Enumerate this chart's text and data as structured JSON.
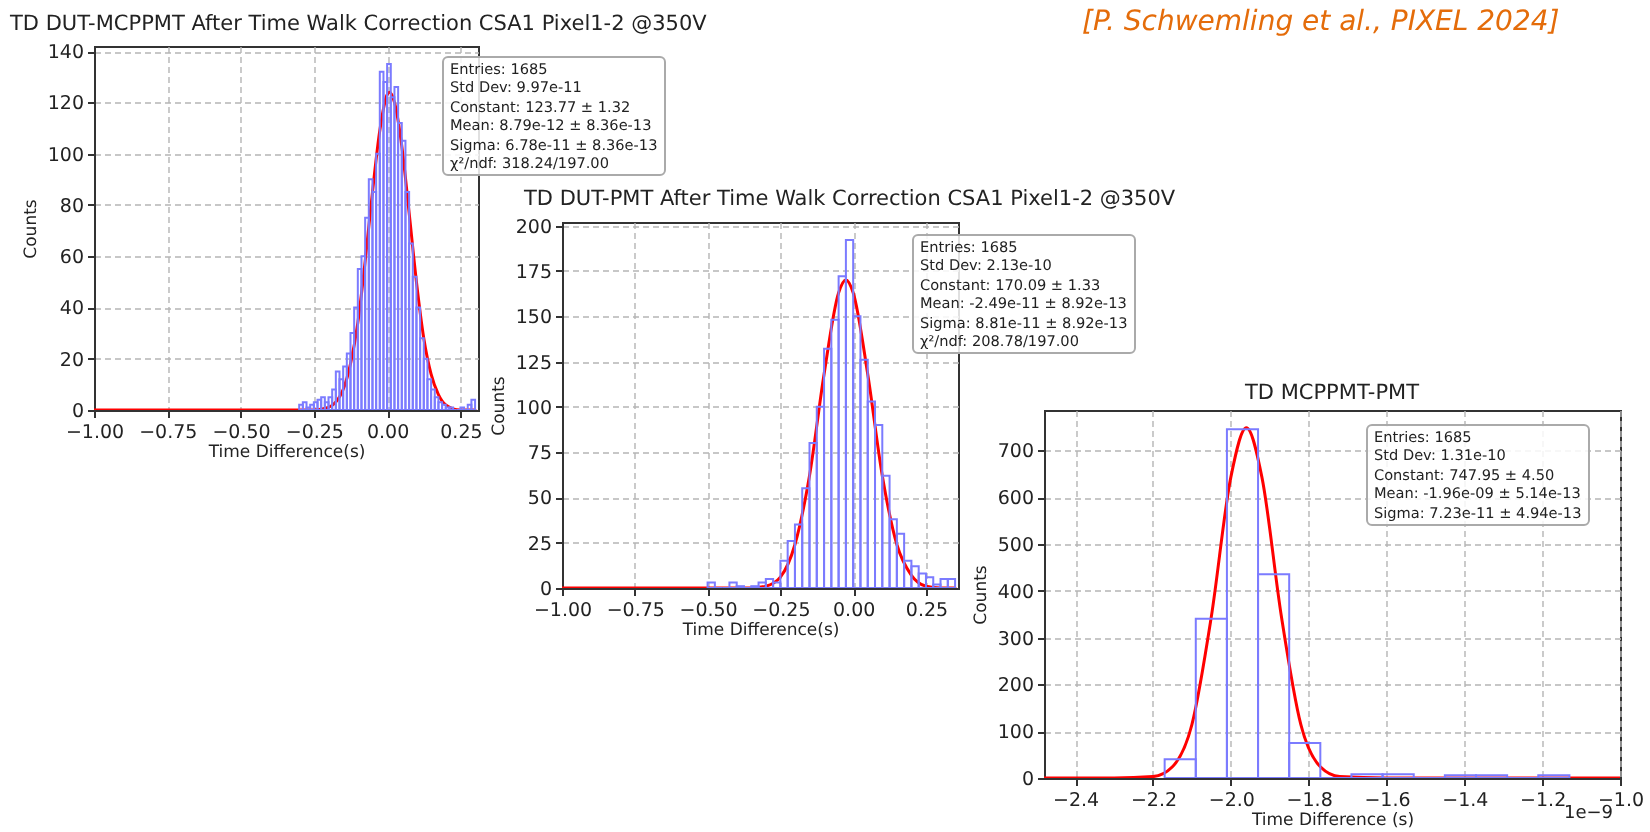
{
  "chart_data": [
    {
      "type": "histogram",
      "title": "TD DUT-MCPPMT After Time Walk Correction CSA1 Pixel1-2 @350V",
      "xlabel": "Time Difference(s)",
      "ylabel": "Counts",
      "xlim": [
        -1,
        0.31
      ],
      "xticks": [
        {
          "value": -1,
          "label": "−1.00"
        },
        {
          "value": -0.75,
          "label": "−0.75"
        },
        {
          "value": -0.5,
          "label": "−0.50"
        },
        {
          "value": -0.25,
          "label": "−0.25"
        },
        {
          "value": 0,
          "label": "0.00"
        },
        {
          "value": 0.25,
          "label": "0.25"
        }
      ],
      "ylim": [
        0,
        142
      ],
      "yticks": [
        0,
        20,
        40,
        60,
        80,
        100,
        120,
        140
      ],
      "grid": true,
      "annotations": [
        "Entries: 1685",
        "Std Dev: 9.97e-11",
        "Constant: 123.77 ± 1.32",
        "Mean: 8.79e-12 ± 8.36e-13",
        "Sigma: 6.78e-11 ± 8.36e-13",
        "χ²/ndf: 318.24/197.00"
      ],
      "series": [
        {
          "color": "#7b7bff",
          "bins": [
            -0.3,
            -0.2875,
            -0.275,
            -0.2625,
            -0.25,
            -0.2375,
            -0.225,
            -0.2125,
            -0.2,
            -0.1875,
            -0.175,
            -0.1625,
            -0.15,
            -0.1375,
            -0.125,
            -0.1125,
            -0.1,
            -0.0875,
            -0.075,
            -0.0625,
            -0.05,
            -0.0375,
            -0.025,
            -0.0125,
            0,
            0.0125,
            0.025,
            0.0375,
            0.05,
            0.0625,
            0.075,
            0.0875,
            0.1,
            0.1125,
            0.125,
            0.1375,
            0.15,
            0.1625,
            0.175,
            0.1875,
            0.2,
            0.2125,
            0.225,
            0.2375,
            0.25,
            0.2625,
            0.275,
            0.2875,
            0.3
          ],
          "values": [
            2,
            3,
            1,
            2,
            3,
            4,
            5,
            3,
            5,
            8,
            15,
            12,
            17,
            22,
            30,
            40,
            55,
            60,
            75,
            90,
            85,
            100,
            132,
            128,
            135,
            122,
            126,
            112,
            105,
            85,
            65,
            52,
            40,
            28,
            20,
            12,
            8,
            5,
            3,
            2,
            1,
            1,
            0,
            0,
            1,
            0,
            2,
            4
          ]
        },
        {
          "type": "line",
          "color": "#ff0000",
          "x": [
            -1,
            -0.3,
            -0.25,
            -0.2,
            -0.15,
            -0.125,
            -0.1,
            -0.075,
            -0.05,
            -0.025,
            0,
            0.0088,
            0.025,
            0.05,
            0.075,
            0.1,
            0.125,
            0.15,
            0.175,
            0.2,
            0.25,
            0.3
          ],
          "values": [
            0,
            0,
            0,
            1,
            8,
            18,
            34,
            58,
            85,
            109,
            123,
            124,
            120,
            103,
            77,
            50,
            28,
            14,
            6,
            2,
            0,
            0
          ]
        }
      ]
    },
    {
      "type": "histogram",
      "title": "TD DUT-PMT After Time Walk Correction CSA1 Pixel1-2 @350V",
      "xlabel": "Time Difference(s)",
      "ylabel": "Counts",
      "xlim": [
        -1,
        0.36
      ],
      "xticks": [
        {
          "value": -1,
          "label": "−1.00"
        },
        {
          "value": -0.75,
          "label": "−0.75"
        },
        {
          "value": -0.5,
          "label": "−0.50"
        },
        {
          "value": -0.25,
          "label": "−0.25"
        },
        {
          "value": 0,
          "label": "0.00"
        },
        {
          "value": 0.25,
          "label": "0.25"
        }
      ],
      "ylim": [
        0,
        202
      ],
      "yticks": [
        0,
        25,
        50,
        75,
        100,
        125,
        150,
        175,
        200
      ],
      "grid": true,
      "annotations": [
        "Entries: 1685",
        "Std Dev: 2.13e-10",
        "Constant: 170.09 ± 1.33",
        "Mean: -2.49e-11 ± 8.92e-13",
        "Sigma: 8.81e-11 ± 8.92e-13",
        "χ²/ndf: 208.78/197.00"
      ],
      "series": [
        {
          "color": "#7b7bff",
          "bins": [
            -0.5,
            -0.475,
            -0.45,
            -0.425,
            -0.4,
            -0.375,
            -0.35,
            -0.325,
            -0.3,
            -0.275,
            -0.25,
            -0.225,
            -0.2,
            -0.175,
            -0.15,
            -0.125,
            -0.1,
            -0.075,
            -0.05,
            -0.025,
            0,
            0.025,
            0.05,
            0.075,
            0.1,
            0.125,
            0.15,
            0.175,
            0.2,
            0.225,
            0.25,
            0.275,
            0.3,
            0.325,
            0.35
          ],
          "values": [
            3,
            0,
            0,
            3,
            1,
            0,
            1,
            3,
            5,
            3,
            15,
            26,
            35,
            55,
            80,
            100,
            132,
            148,
            172,
            192,
            150,
            126,
            103,
            90,
            62,
            38,
            30,
            15,
            12,
            8,
            6,
            2,
            5,
            5
          ]
        },
        {
          "type": "line",
          "color": "#ff0000",
          "x": [
            -1,
            -0.5,
            -0.4,
            -0.35,
            -0.3,
            -0.25,
            -0.2,
            -0.15,
            -0.1,
            -0.05,
            -0.0249,
            0,
            0.05,
            0.1,
            0.15,
            0.2,
            0.25,
            0.3,
            0.35
          ],
          "values": [
            0,
            0,
            0,
            0,
            1,
            6,
            24,
            62,
            118,
            163,
            170,
            163,
            118,
            62,
            24,
            7,
            1,
            0,
            0
          ]
        }
      ]
    },
    {
      "type": "histogram",
      "title": "TD MCPPMT-PMT",
      "xlabel": "Time Difference (s)",
      "ylabel": "Counts",
      "xlim": [
        -2.48,
        -1.0
      ],
      "xticks": [
        {
          "value": -2.4,
          "label": "−2.4"
        },
        {
          "value": -2.2,
          "label": "−2.2"
        },
        {
          "value": -2.0,
          "label": "−2.0"
        },
        {
          "value": -1.8,
          "label": "−1.8"
        },
        {
          "value": -1.6,
          "label": "−1.6"
        },
        {
          "value": -1.4,
          "label": "−1.4"
        },
        {
          "value": -1.2,
          "label": "−1.2"
        },
        {
          "value": -1.0,
          "label": "−1.0"
        }
      ],
      "ylim": [
        0,
        786
      ],
      "yticks": [
        0,
        100,
        200,
        300,
        400,
        500,
        600,
        700
      ],
      "grid": true,
      "annotations": [
        "Entries: 1685",
        "Std Dev: 1.31e-10",
        "Constant: 747.95 ± 4.50",
        "Mean: -1.96e-09 ± 5.14e-13",
        "Sigma: 7.23e-11 ± 4.94e-13",
        "1e−9"
      ],
      "series": [
        {
          "color": "#7b7bff",
          "bins": [
            -2.17,
            -2.09,
            -2.01,
            -1.93,
            -1.85,
            -1.77,
            -1.69,
            -1.61,
            -1.53,
            -1.45,
            -1.37,
            -1.29,
            -1.21,
            -1.13
          ],
          "values": [
            40,
            340,
            745,
            435,
            75,
            0,
            8,
            8,
            0,
            6,
            6,
            0,
            6
          ]
        },
        {
          "type": "line",
          "color": "#ff0000",
          "x": [
            -2.48,
            -2.3,
            -2.2,
            -2.15,
            -2.1,
            -2.05,
            -2.0,
            -1.96,
            -1.92,
            -1.87,
            -1.82,
            -1.77,
            -1.72,
            -1.6,
            -1.0
          ],
          "values": [
            0,
            0,
            3,
            24,
            114,
            345,
            642,
            748,
            642,
            345,
            114,
            24,
            3,
            0,
            0
          ]
        }
      ]
    },
    {
      "type": "other",
      "annotations": [
        "[P. Schwemling et al., PIXEL 2024]"
      ]
    }
  ]
}
